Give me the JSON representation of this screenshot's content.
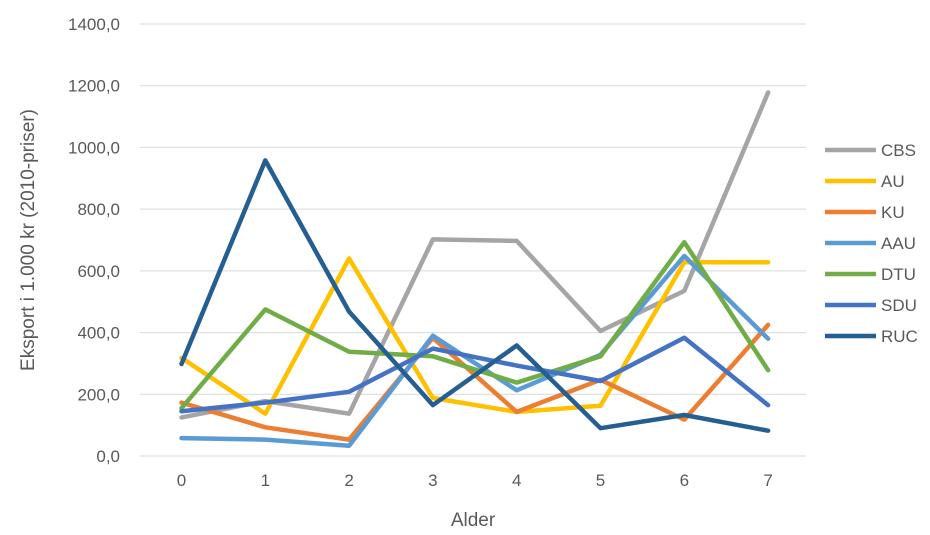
{
  "chart_data": {
    "type": "line",
    "title": "",
    "xlabel": "Alder",
    "ylabel": "Eksport i 1.000 kr (2010-priser)",
    "x": [
      0,
      1,
      2,
      3,
      4,
      5,
      6,
      7
    ],
    "x_tick_labels": [
      "0",
      "1",
      "2",
      "3",
      "4",
      "5",
      "6",
      "7"
    ],
    "ylim": [
      0,
      1400
    ],
    "y_ticks": [
      0,
      200,
      400,
      600,
      800,
      1000,
      1200,
      1400
    ],
    "y_tick_labels": [
      "0,0",
      "200,0",
      "400,0",
      "600,0",
      "800,0",
      "1000,0",
      "1200,0",
      "1400,0"
    ],
    "grid": true,
    "legend_position": "right",
    "series": [
      {
        "name": "CBS",
        "color": "#a5a5a5",
        "values": [
          125,
          178,
          137,
          702,
          697,
          405,
          535,
          1178
        ]
      },
      {
        "name": "AU",
        "color": "#ffc000",
        "values": [
          318,
          137,
          640,
          188,
          143,
          163,
          628,
          628
        ]
      },
      {
        "name": "KU",
        "color": "#ed7d31",
        "values": [
          173,
          93,
          53,
          383,
          143,
          247,
          118,
          425
        ]
      },
      {
        "name": "AAU",
        "color": "#5b9bd5",
        "values": [
          58,
          53,
          33,
          390,
          213,
          328,
          648,
          380
        ]
      },
      {
        "name": "DTU",
        "color": "#70ad47",
        "values": [
          155,
          475,
          338,
          323,
          238,
          323,
          693,
          278
        ]
      },
      {
        "name": "SDU",
        "color": "#4472c4",
        "values": [
          145,
          173,
          208,
          348,
          293,
          243,
          383,
          165
        ]
      },
      {
        "name": "RUC",
        "color": "#255e91",
        "values": [
          298,
          958,
          468,
          165,
          358,
          90,
          133,
          82
        ]
      }
    ]
  }
}
